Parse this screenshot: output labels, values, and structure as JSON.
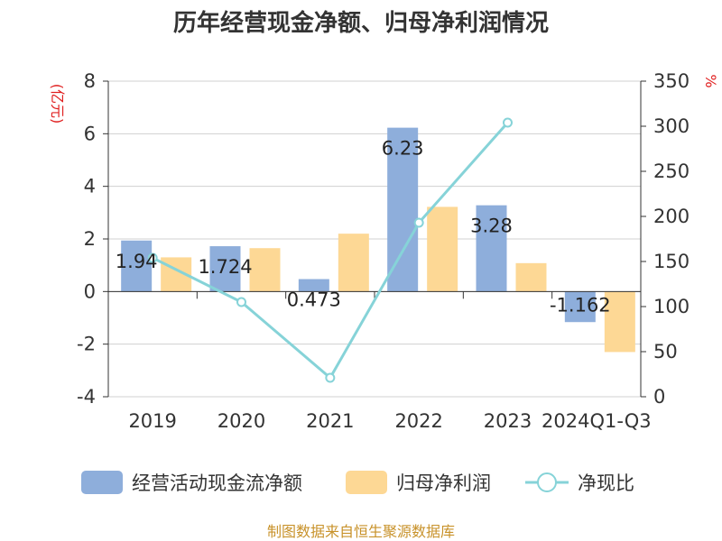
{
  "chart_data": {
    "type": "bar",
    "title": "历年经营现金净额、归母净利润情况",
    "categories": [
      "2019",
      "2020",
      "2021",
      "2022",
      "2023",
      "2024Q1-Q3"
    ],
    "y_left": {
      "unit": "(亿元)",
      "range": [
        -4,
        8
      ],
      "ticks": [
        "-4",
        "-2",
        "0",
        "2",
        "4",
        "6",
        "8"
      ]
    },
    "y_right": {
      "unit": "%",
      "range": [
        0,
        350
      ],
      "ticks": [
        "0",
        "50",
        "100",
        "150",
        "200",
        "250",
        "300",
        "350"
      ]
    },
    "series": [
      {
        "name": "经营活动现金流净额",
        "type": "bar",
        "axis": "left",
        "color": "#8eaedb",
        "values": [
          1.94,
          1.724,
          0.473,
          6.23,
          3.28,
          -1.162
        ],
        "labels": [
          "1.94",
          "1.724",
          "0.473",
          "6.23",
          "3.28",
          "-1.162"
        ]
      },
      {
        "name": "归母净利润",
        "type": "bar",
        "axis": "left",
        "color": "#fdd895",
        "values": [
          1.3,
          1.65,
          2.2,
          3.22,
          1.08,
          -2.3
        ]
      },
      {
        "name": "净现比",
        "type": "line",
        "axis": "right",
        "color": "#86d3d8",
        "values": [
          154,
          105,
          21,
          193,
          304,
          null
        ]
      }
    ],
    "grid": true,
    "legend_position": "bottom"
  },
  "source_text": "制图数据来自恒生聚源数据库"
}
